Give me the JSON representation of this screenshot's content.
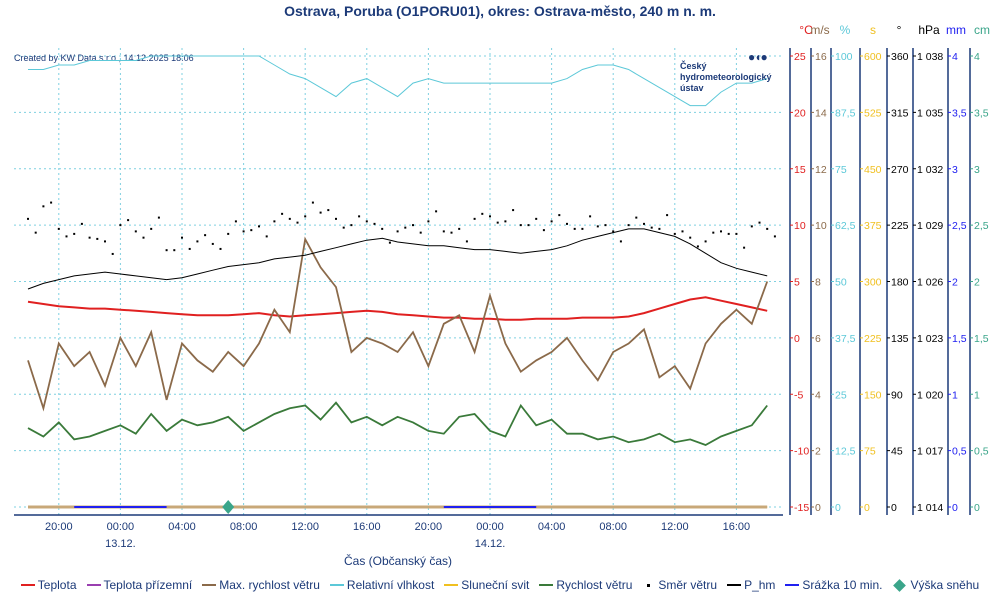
{
  "title": "Ostrava, Poruba (O1PORU01), okres: Ostrava-město, 240 m n. m.",
  "credit": "Created by KW Data s.r.o., 14.12.2025 18:06",
  "logo": {
    "line1": "Český",
    "line2": "hydrometeorologický",
    "line3": "ústav"
  },
  "legend": [
    {
      "label": "Teplota",
      "color": "#e02020"
    },
    {
      "label": "Teplota přízemní",
      "color": "#9a3fb0"
    },
    {
      "label": "Max. rychlost větru",
      "color": "#8b6a4a"
    },
    {
      "label": "Relativní vlhkost",
      "color": "#5cc8d8"
    },
    {
      "label": "Sluneční svit",
      "color": "#f0c020"
    },
    {
      "label": "Rychlost větru",
      "color": "#3a7a3a"
    },
    {
      "label": "Směr větru",
      "color": "#000000"
    },
    {
      "label": "P_hm",
      "color": "#000000"
    },
    {
      "label": "Srážka 10 min.",
      "color": "#2020f0"
    },
    {
      "label": "Výška sněhu",
      "color": "#3aa58a"
    }
  ],
  "chart_data": {
    "type": "line",
    "title": "Ostrava, Poruba (O1PORU01), okres: Ostrava-město, 240 m n. m.",
    "xlabel": "Čas (Občanský čas)",
    "x_start": "12.12. 18:00",
    "x_step_hours": 1,
    "x_ticks": [
      {
        "hour": 2,
        "label": "20:00",
        "date": ""
      },
      {
        "hour": 6,
        "label": "00:00",
        "date": "13.12."
      },
      {
        "hour": 10,
        "label": "04:00",
        "date": ""
      },
      {
        "hour": 14,
        "label": "08:00",
        "date": ""
      },
      {
        "hour": 18,
        "label": "12:00",
        "date": ""
      },
      {
        "hour": 22,
        "label": "16:00",
        "date": ""
      },
      {
        "hour": 26,
        "label": "20:00",
        "date": ""
      },
      {
        "hour": 30,
        "label": "00:00",
        "date": "14.12."
      },
      {
        "hour": 34,
        "label": "04:00",
        "date": ""
      },
      {
        "hour": 38,
        "label": "08:00",
        "date": ""
      },
      {
        "hour": 42,
        "label": "12:00",
        "date": ""
      },
      {
        "hour": 46,
        "label": "16:00",
        "date": ""
      }
    ],
    "axes": [
      {
        "unit": "°C",
        "color": "#e02020",
        "ticks": [
          "-15",
          "-10",
          "-5",
          "0",
          "5",
          "10",
          "15",
          "20",
          "25"
        ],
        "range": [
          -15,
          25
        ]
      },
      {
        "unit": "m/s",
        "color": "#8b6a4a",
        "ticks": [
          "0",
          "2",
          "4",
          "6",
          "8",
          "10",
          "12",
          "14",
          "16"
        ],
        "range": [
          0,
          16
        ]
      },
      {
        "unit": "%",
        "color": "#5cc8d8",
        "ticks": [
          "0",
          "12,5",
          "25",
          "37,5",
          "50",
          "62,5",
          "75",
          "87,5",
          "100"
        ],
        "range": [
          0,
          100
        ]
      },
      {
        "unit": "s",
        "color": "#f0c020",
        "ticks": [
          "0",
          "75",
          "150",
          "225",
          "300",
          "375",
          "450",
          "525",
          "600"
        ],
        "range": [
          0,
          600
        ]
      },
      {
        "unit": "°",
        "color": "#000000",
        "ticks": [
          "0",
          "45",
          "90",
          "135",
          "180",
          "225",
          "270",
          "315",
          "360"
        ],
        "range": [
          0,
          360
        ]
      },
      {
        "unit": "hPa",
        "color": "#000000",
        "ticks": [
          "1 014",
          "1 017",
          "1 020",
          "1 023",
          "1 026",
          "1 029",
          "1 032",
          "1 035",
          "1 038"
        ],
        "range": [
          1014,
          1038
        ]
      },
      {
        "unit": "mm",
        "color": "#2020f0",
        "ticks": [
          "0",
          "0,5",
          "1",
          "1,5",
          "2",
          "2,5",
          "3",
          "3,5",
          "4"
        ],
        "range": [
          0,
          4
        ]
      },
      {
        "unit": "cm",
        "color": "#3aa58a",
        "ticks": [
          "0",
          "0,5",
          "1",
          "1,5",
          "2",
          "2,5",
          "3",
          "3,5",
          "4"
        ],
        "range": [
          0,
          4
        ]
      }
    ],
    "series": [
      {
        "name": "Teplota",
        "axis": 0,
        "color": "#e02020",
        "values": [
          3.2,
          3.0,
          2.8,
          2.7,
          2.6,
          2.6,
          2.5,
          2.4,
          2.3,
          2.2,
          2.1,
          2.0,
          2.0,
          2.0,
          2.1,
          2.2,
          2.0,
          1.9,
          2.0,
          2.1,
          2.2,
          2.3,
          2.4,
          2.3,
          2.1,
          2.0,
          1.9,
          1.8,
          1.8,
          1.7,
          1.7,
          1.6,
          1.6,
          1.7,
          1.7,
          1.7,
          1.8,
          1.8,
          1.8,
          1.9,
          2.2,
          2.6,
          3.0,
          3.4,
          3.6,
          3.3,
          3.0,
          2.7,
          2.4
        ]
      },
      {
        "name": "Max. rychlost větru",
        "axis": 1,
        "color": "#8b6a4a",
        "values": [
          5.2,
          3.5,
          5.8,
          5.0,
          5.5,
          4.3,
          6.0,
          5.0,
          6.2,
          3.8,
          5.8,
          5.2,
          4.8,
          5.5,
          5.0,
          5.8,
          7.0,
          6.2,
          9.5,
          8.5,
          7.8,
          5.5,
          6.0,
          5.8,
          5.5,
          6.2,
          5.0,
          6.5,
          6.8,
          5.5,
          7.5,
          5.8,
          4.8,
          5.2,
          5.5,
          6.0,
          5.2,
          4.5,
          5.5,
          5.8,
          6.3,
          4.6,
          5.0,
          4.2,
          5.8,
          6.5,
          7.0,
          6.5,
          8.0
        ]
      },
      {
        "name": "Relativní vlhkost",
        "axis": 2,
        "color": "#5cc8d8",
        "values": [
          97,
          97,
          98,
          98,
          99,
          99,
          99,
          99,
          100,
          100,
          100,
          100,
          100,
          100,
          100,
          100,
          98,
          96,
          95,
          93,
          91,
          94,
          95,
          93,
          91,
          94,
          95,
          94,
          94,
          94,
          94,
          94,
          94,
          94,
          94,
          95,
          97,
          98,
          98,
          97,
          95,
          93,
          91,
          89,
          89,
          92,
          94,
          94,
          95
        ]
      },
      {
        "name": "Sluneční svit",
        "axis": 3,
        "color": "#f0c020",
        "values": [
          0,
          0,
          0,
          0,
          0,
          0,
          0,
          0,
          0,
          0,
          0,
          0,
          0,
          0,
          0,
          0,
          0,
          0,
          0,
          0,
          0,
          0,
          0,
          0,
          0,
          0,
          0,
          0,
          0,
          0,
          0,
          0,
          0,
          0,
          0,
          0,
          0,
          0,
          0,
          0,
          0,
          0,
          0,
          0,
          0,
          0,
          0,
          0,
          0
        ]
      },
      {
        "name": "Rychlost větru",
        "axis": 1,
        "color": "#3a7a3a",
        "values": [
          2.8,
          2.5,
          3.0,
          2.4,
          2.5,
          2.7,
          2.9,
          2.6,
          3.3,
          2.7,
          3.1,
          2.9,
          3.0,
          3.2,
          2.7,
          3.0,
          3.3,
          3.5,
          3.6,
          3.1,
          3.7,
          3.0,
          3.2,
          2.9,
          3.2,
          3.0,
          2.7,
          2.6,
          3.2,
          3.3,
          2.7,
          2.5,
          3.6,
          2.9,
          3.1,
          2.6,
          2.6,
          2.4,
          2.5,
          2.3,
          2.4,
          2.6,
          2.3,
          2.4,
          2.2,
          2.5,
          2.7,
          2.9,
          3.6
        ]
      },
      {
        "name": "Směr větru",
        "axis": 4,
        "color": "#000000",
        "style": "dots",
        "values": [
          230,
          240,
          222,
          218,
          215,
          212,
          225,
          220,
          222,
          205,
          215,
          212,
          210,
          218,
          220,
          224,
          228,
          230,
          232,
          235,
          230,
          225,
          228,
          222,
          220,
          225,
          228,
          220,
          222,
          230,
          232,
          228,
          225,
          230,
          228,
          226,
          222,
          224,
          220,
          225,
          226,
          222,
          218,
          215,
          212,
          220,
          218,
          224,
          222
        ]
      },
      {
        "name": "P_hm",
        "axis": 5,
        "color": "#000000",
        "values": [
          1025.6,
          1025.9,
          1026.1,
          1026.3,
          1026.4,
          1026.5,
          1026.4,
          1026.3,
          1026.2,
          1026.1,
          1026.2,
          1026.4,
          1026.6,
          1026.8,
          1026.9,
          1027.0,
          1027.2,
          1027.3,
          1027.4,
          1027.6,
          1027.8,
          1028.0,
          1028.2,
          1028.3,
          1028.1,
          1028.0,
          1027.9,
          1027.9,
          1027.8,
          1027.7,
          1027.7,
          1027.6,
          1027.5,
          1027.6,
          1027.7,
          1027.9,
          1028.2,
          1028.4,
          1028.6,
          1028.8,
          1028.8,
          1028.6,
          1028.4,
          1028.0,
          1027.5,
          1027.0,
          1026.7,
          1026.5,
          1026.3
        ]
      }
    ],
    "precip_10min": {
      "name": "Srážka 10 min.",
      "axis": 6,
      "value": 0,
      "periods_hours": [
        [
          3,
          9
        ],
        [
          27,
          33
        ]
      ]
    },
    "snow_height": {
      "name": "Výška sněhu",
      "axis": 7,
      "hour": 13,
      "value": 0
    }
  }
}
